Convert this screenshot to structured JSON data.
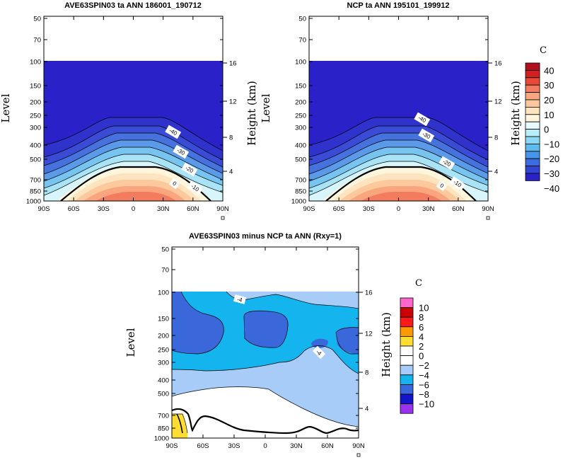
{
  "chart_data": [
    {
      "type": "contour",
      "title": "AVE63SPIN03 ta ANN 186001_190712",
      "xlabel": "",
      "ylabel": "Level",
      "y2label": "Height (km)",
      "x_ticks": [
        "90S",
        "60S",
        "30S",
        "0",
        "30N",
        "60N",
        "90N"
      ],
      "y_ticks": [
        "50",
        "70",
        "100",
        "150",
        "200",
        "250",
        "300",
        "400",
        "500",
        "700",
        "850",
        "1000"
      ],
      "y2_ticks": [
        "16",
        "12",
        "8",
        "4"
      ],
      "contour_labels": [
        "-40",
        "-30",
        "-20",
        "-10",
        "0"
      ],
      "units": "C",
      "data_top_level": 100
    },
    {
      "type": "contour",
      "title": "NCP ta ANN 195101_199912",
      "xlabel": "",
      "ylabel": "Level",
      "y2label": "Height (km)",
      "x_ticks": [
        "90S",
        "60S",
        "30S",
        "0",
        "30N",
        "60N",
        "90N"
      ],
      "y_ticks": [
        "50",
        "70",
        "100",
        "150",
        "200",
        "250",
        "300",
        "400",
        "500",
        "700",
        "850",
        "1000"
      ],
      "y2_ticks": [
        "16",
        "12",
        "8",
        "4"
      ],
      "contour_labels": [
        "-40",
        "-30",
        "-20",
        "-10",
        "0"
      ],
      "units": "C",
      "data_top_level": 100
    },
    {
      "type": "contour",
      "title": "AVE63SPIN03 minus NCP ta ANN (Rxy=1)",
      "xlabel": "",
      "ylabel": "Level",
      "y2label": "Height (km)",
      "x_ticks": [
        "90S",
        "60S",
        "30S",
        "0",
        "30N",
        "60N",
        "90N"
      ],
      "y_ticks": [
        "50",
        "70",
        "100",
        "150",
        "200",
        "250",
        "300",
        "400",
        "500",
        "700",
        "850",
        "1000"
      ],
      "y2_ticks": [
        "16",
        "12",
        "8",
        "4"
      ],
      "contour_labels": [
        "-4",
        "-4"
      ],
      "units": "C",
      "data_top_level": 100
    }
  ],
  "colorbar_full": {
    "unit": "C",
    "labels": [
      "40",
      "30",
      "20",
      "10",
      "0",
      "−10",
      "−20",
      "−30",
      "−40"
    ],
    "colors": [
      "#b0101e",
      "#d02020",
      "#e84a38",
      "#f47c5e",
      "#f9a57e",
      "#fcc89c",
      "#fde4be",
      "#fef6dc",
      "#e6f9fc",
      "#b8eef8",
      "#8ad8f2",
      "#5fbbed",
      "#4895e8",
      "#3b6de0",
      "#3244d2",
      "#2a22c8"
    ]
  },
  "colorbar_diff": {
    "unit": "C",
    "labels": [
      "10",
      "8",
      "6",
      "4",
      "2",
      "0",
      "−2",
      "−4",
      "−6",
      "−8",
      "−10"
    ],
    "colors": [
      "#ff66cc",
      "#cc0000",
      "#ff1a1a",
      "#ff9900",
      "#ffdd33",
      "#ffffff",
      "#ffffff",
      "#a8ccf8",
      "#14b4ee",
      "#3a68da",
      "#1414c8",
      "#9933ee"
    ]
  },
  "palette": {
    "top_blue": "#2a22c8",
    "diff_light": "#a8ccf8",
    "diff_cyan": "#14b4ee",
    "diff_mid": "#3a68da",
    "diff_yellow": "#ffdd33"
  }
}
